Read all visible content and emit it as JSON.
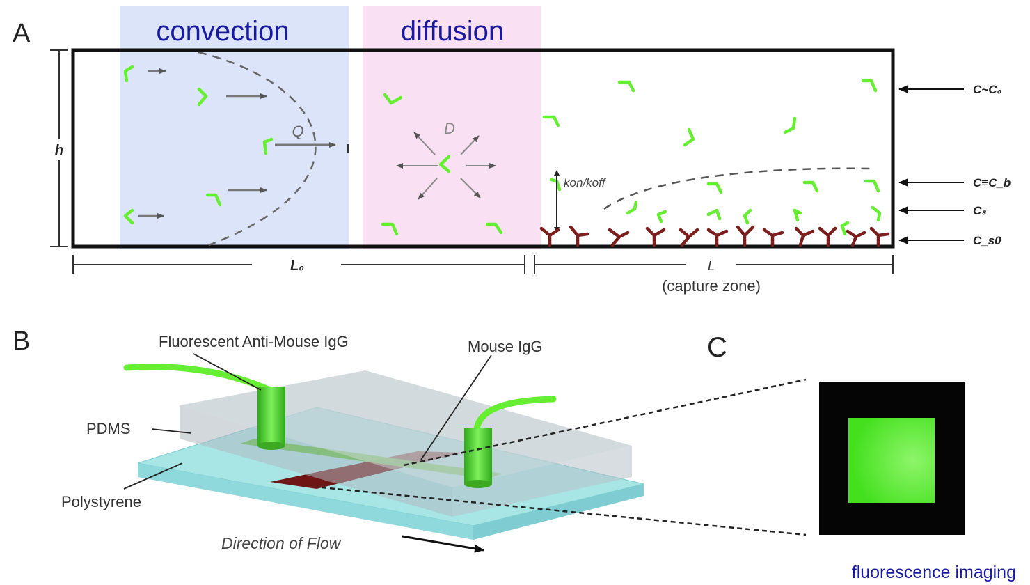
{
  "panel_a": {
    "letter": "A",
    "convection_label": "convection",
    "diffusion_label": "diffusion",
    "height_label": "h",
    "flow_label": "Q",
    "diffusion_coeff_label": "D",
    "rate_label": "kon/koff",
    "length_label": "L₀",
    "capture_length_label": "L",
    "capture_zone_label": "(capture zone)",
    "concentration_labels": [
      "C~C₀",
      "C≡C_b",
      "Cₛ",
      "C_s0"
    ],
    "colors": {
      "convection_bg": "#dbe4f9",
      "diffusion_bg": "#f9e1f3",
      "molecule": "#66ee33",
      "antibody": "#7a1e1e",
      "label_blue": "#1a1aa0"
    }
  },
  "panel_b": {
    "letter": "B",
    "fluorescent_label": "Fluorescent Anti-Mouse IgG",
    "mouse_label": "Mouse IgG",
    "pdms_label": "PDMS",
    "polystyrene_label": "Polystyrene",
    "flow_direction_label": "Direction of Flow"
  },
  "panel_c": {
    "letter": "C",
    "caption": "fluorescence imaging"
  }
}
